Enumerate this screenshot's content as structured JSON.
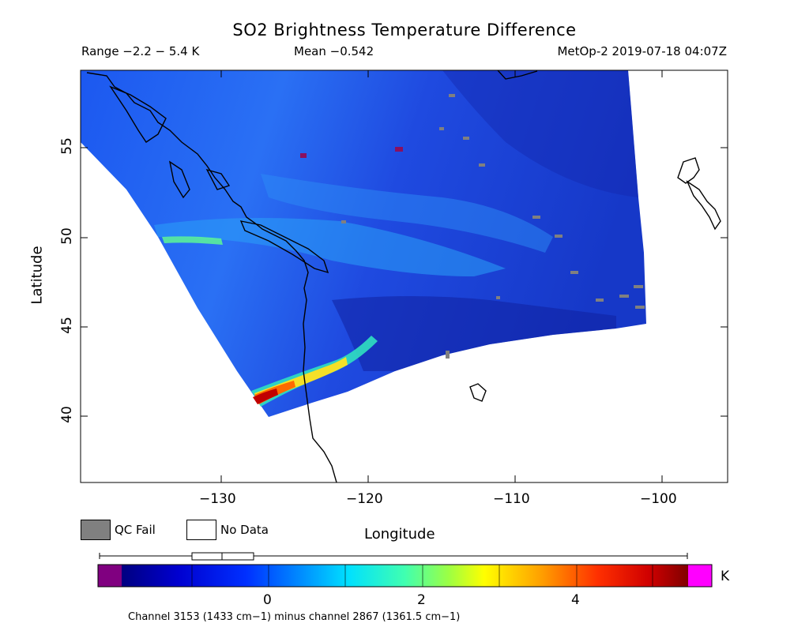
{
  "title": "SO2 Brightness Temperature Difference",
  "stats": {
    "range": "Range −2.2 − 5.4 K",
    "mean": "Mean −0.542",
    "satellite_time": "MetOp-2 2019-07-18 04:07Z"
  },
  "axes": {
    "xlabel": "Longitude",
    "ylabel": "Latitude",
    "xticks": [
      "−130",
      "−120",
      "−110",
      "−100"
    ],
    "yticks": [
      "40",
      "45",
      "50",
      "55"
    ],
    "xlim": [
      -139.5,
      -95.5
    ],
    "ylim": [
      36,
      59
    ]
  },
  "legend": {
    "qc_fail": "QC Fail",
    "no_data": "No Data",
    "qc_fail_color": "#808080",
    "no_data_color": "#ffffff"
  },
  "colorbar": {
    "unit": "K",
    "ticks": [
      "0",
      "2",
      "4"
    ],
    "tick_values": [
      0,
      2,
      4
    ],
    "range": [
      -2.2,
      5.4
    ],
    "under_color": "#800080",
    "over_color": "#ff00ff",
    "footnote": "Channel 3153 (1433 cm−1) minus channel 2867 (1361.5 cm−1)"
  },
  "colors": {
    "background_field": "#2a4ee8",
    "coastline": "#000000"
  }
}
